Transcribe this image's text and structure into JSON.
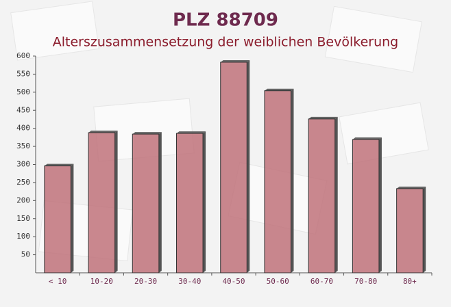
{
  "chart_data": {
    "type": "bar",
    "title": "PLZ 88709",
    "subtitle": "Alterszusammensetzung der weiblichen Bevölkerung",
    "categories": [
      "< 10",
      "10-20",
      "20-30",
      "30-40",
      "40-50",
      "50-60",
      "60-70",
      "70-80",
      "80+"
    ],
    "values": [
      296,
      388,
      384,
      386,
      583,
      504,
      426,
      369,
      233
    ],
    "color": "#c0727a",
    "ylim": [
      0,
      600
    ],
    "yticks": [
      50,
      100,
      150,
      200,
      250,
      300,
      350,
      400,
      450,
      500,
      550,
      600
    ]
  }
}
